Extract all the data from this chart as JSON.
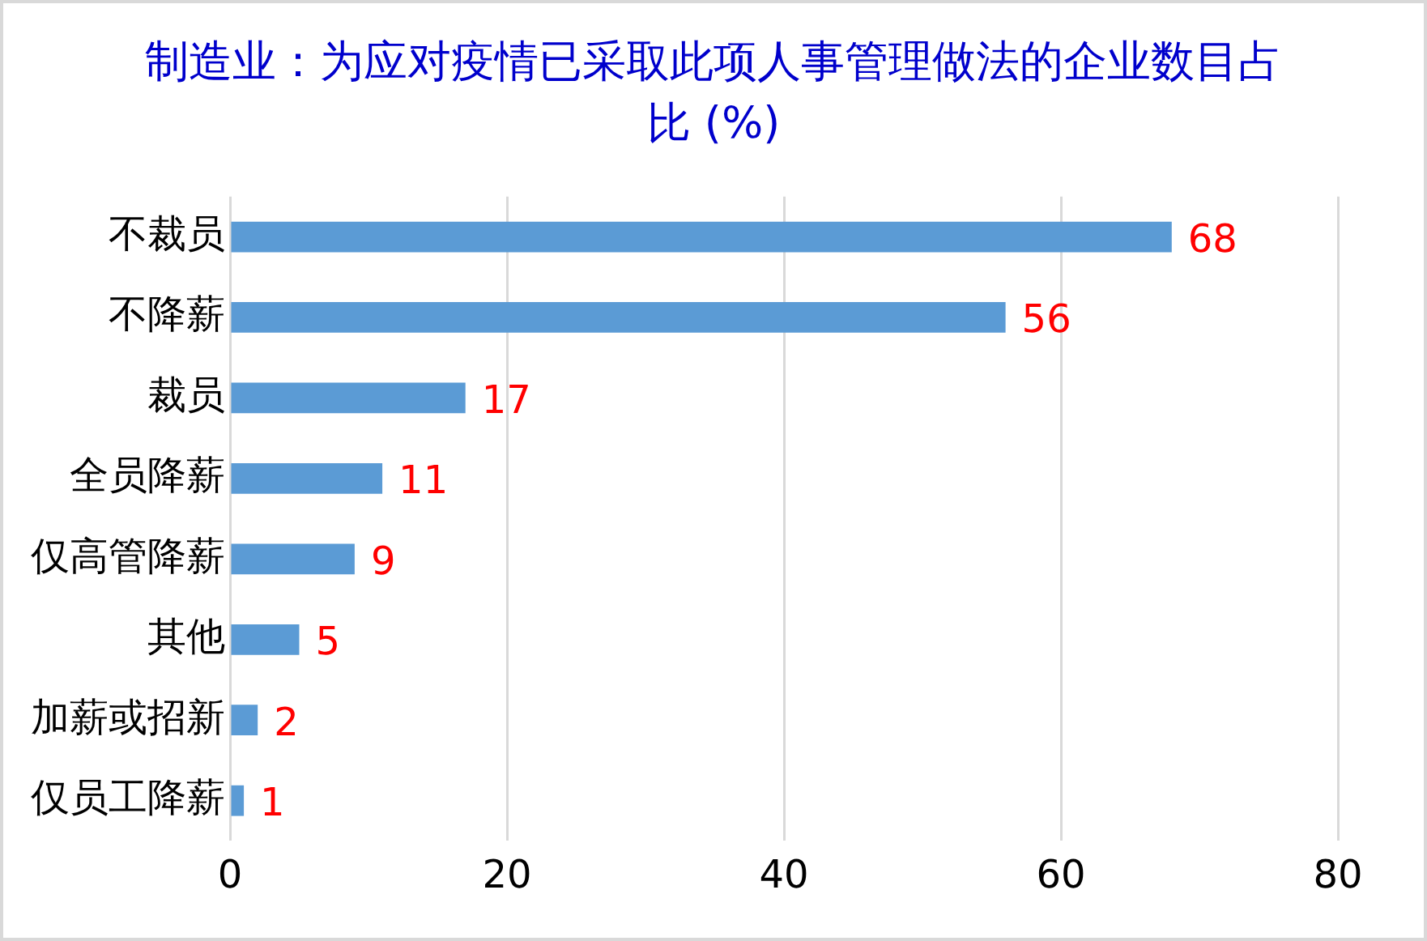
{
  "chart_data": {
    "type": "bar",
    "orientation": "horizontal",
    "title": "制造业：为应对疫情已采取此项人事管理做法的企业数目占比 (%)",
    "categories": [
      "不裁员",
      "不降薪",
      "裁员",
      "全员降薪",
      "仅高管降薪",
      "其他",
      "加薪或招新",
      "仅员工降薪"
    ],
    "values": [
      68,
      56,
      17,
      11,
      9,
      5,
      2,
      1
    ],
    "color": "#5b9bd5",
    "xlim": [
      0,
      80
    ],
    "xticks": [
      0,
      20,
      40,
      60,
      80
    ],
    "grid": "x",
    "data_labels": true,
    "legend": false
  }
}
